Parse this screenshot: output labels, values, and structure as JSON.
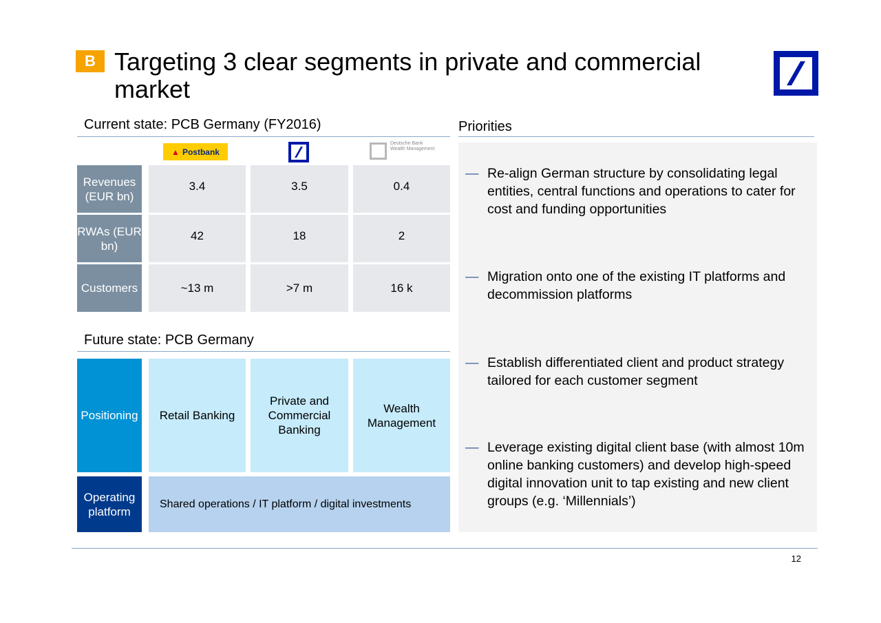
{
  "badge": "B",
  "title": "Targeting 3 clear segments in private and commercial market",
  "current_state": {
    "heading": "Current state: PCB Germany (FY2016)",
    "brands": {
      "postbank": "Postbank",
      "wealth_management": [
        "Deutsche Bank",
        "Wealth Management"
      ]
    },
    "rows": [
      {
        "label": "Revenues (EUR bn)",
        "values": [
          "3.4",
          "3.5",
          "0.4"
        ]
      },
      {
        "label": "RWAs (EUR bn)",
        "values": [
          "42",
          "18",
          "2"
        ]
      },
      {
        "label": "Customers",
        "values": [
          "~13 m",
          ">7 m",
          "16 k"
        ]
      }
    ]
  },
  "future_state": {
    "heading": "Future state: PCB Germany",
    "positioning": {
      "label": "Positioning",
      "values": [
        "Retail Banking",
        "Private and Commercial Banking",
        "Wealth Management"
      ]
    },
    "operating": {
      "label": "Operating platform",
      "value": "Shared operations / IT platform / digital investments"
    }
  },
  "priorities": {
    "heading": "Priorities",
    "items": [
      "Re-align German structure by consolidating legal entities, central functions and operations to cater for cost and funding opportunities",
      "Migration onto one of the existing IT platforms and decommission platforms",
      "Establish differentiated client and product strategy tailored for each customer segment",
      "Leverage existing digital client base (with almost 10m online banking customers) and develop high-speed digital innovation unit to tap existing and new client groups (e.g. ‘Millennials’)"
    ]
  },
  "page_number": "12",
  "colors": {
    "badge": "#f6a300",
    "db_blue": "#0018a8",
    "row_label": "#7b8fa1",
    "positioning": "#0092d4",
    "operating": "#003a8c"
  }
}
